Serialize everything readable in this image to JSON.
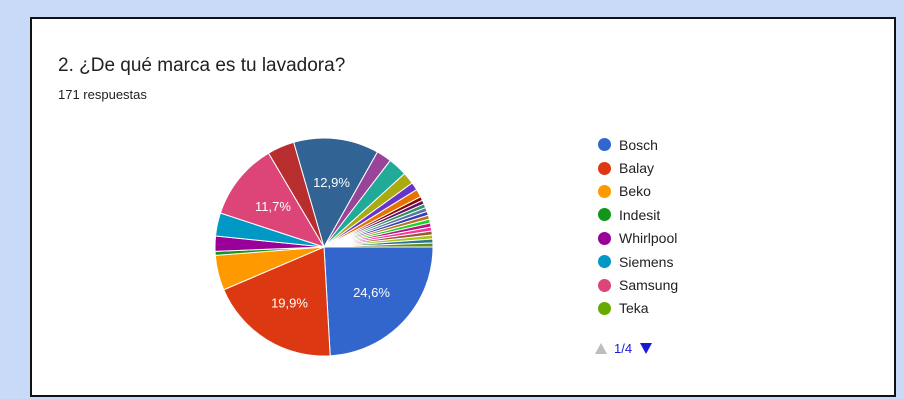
{
  "question": {
    "title": "2. ¿De qué marca es tu lavadora?",
    "responses": "171 respuestas"
  },
  "pager": {
    "label": "1/4"
  },
  "chart_data": {
    "type": "pie",
    "title": "2. ¿De qué marca es tu lavadora?",
    "slices": [
      {
        "name": "Bosch",
        "value": 24.6,
        "label": "24,6%",
        "color": "#3366cc"
      },
      {
        "name": "Balay",
        "value": 19.9,
        "label": "19,9%",
        "color": "#dc3912"
      },
      {
        "name": "Beko",
        "value": 5.3,
        "color": "#ff9900"
      },
      {
        "name": "Indesit",
        "value": 0.6,
        "color": "#109618"
      },
      {
        "name": "Whirlpool",
        "value": 2.3,
        "color": "#990099"
      },
      {
        "name": "Siemens",
        "value": 3.5,
        "color": "#0099c6"
      },
      {
        "name": "Samsung",
        "value": 11.7,
        "label": "11,7%",
        "color": "#dd4477"
      },
      {
        "name": "Teka",
        "value": 0.0,
        "color": "#66aa00"
      },
      {
        "value": 4.1,
        "color": "#b82e2e"
      },
      {
        "value": 12.9,
        "label": "12,9%",
        "color": "#316395"
      },
      {
        "value": 2.3,
        "color": "#994499"
      },
      {
        "value": 2.9,
        "color": "#22aa99"
      },
      {
        "value": 1.8,
        "color": "#aaaa11"
      },
      {
        "value": 1.2,
        "color": "#6633cc"
      },
      {
        "value": 1.2,
        "color": "#e67300"
      },
      {
        "value": 0.6,
        "color": "#8b0707"
      },
      {
        "value": 0.6,
        "color": "#651067"
      },
      {
        "value": 0.6,
        "color": "#329262"
      },
      {
        "value": 0.6,
        "color": "#5574a6"
      },
      {
        "value": 0.6,
        "color": "#3b3eac"
      },
      {
        "value": 0.6,
        "color": "#b77322"
      },
      {
        "value": 0.6,
        "color": "#16d620"
      },
      {
        "value": 0.6,
        "color": "#b91383"
      },
      {
        "value": 0.6,
        "color": "#f4359e"
      },
      {
        "value": 0.6,
        "color": "#9c5935"
      },
      {
        "value": 0.6,
        "color": "#a9c413"
      },
      {
        "value": 0.6,
        "color": "#2a778d"
      },
      {
        "value": 0.6,
        "color": "#668d1c"
      }
    ],
    "legend_position": "right"
  }
}
